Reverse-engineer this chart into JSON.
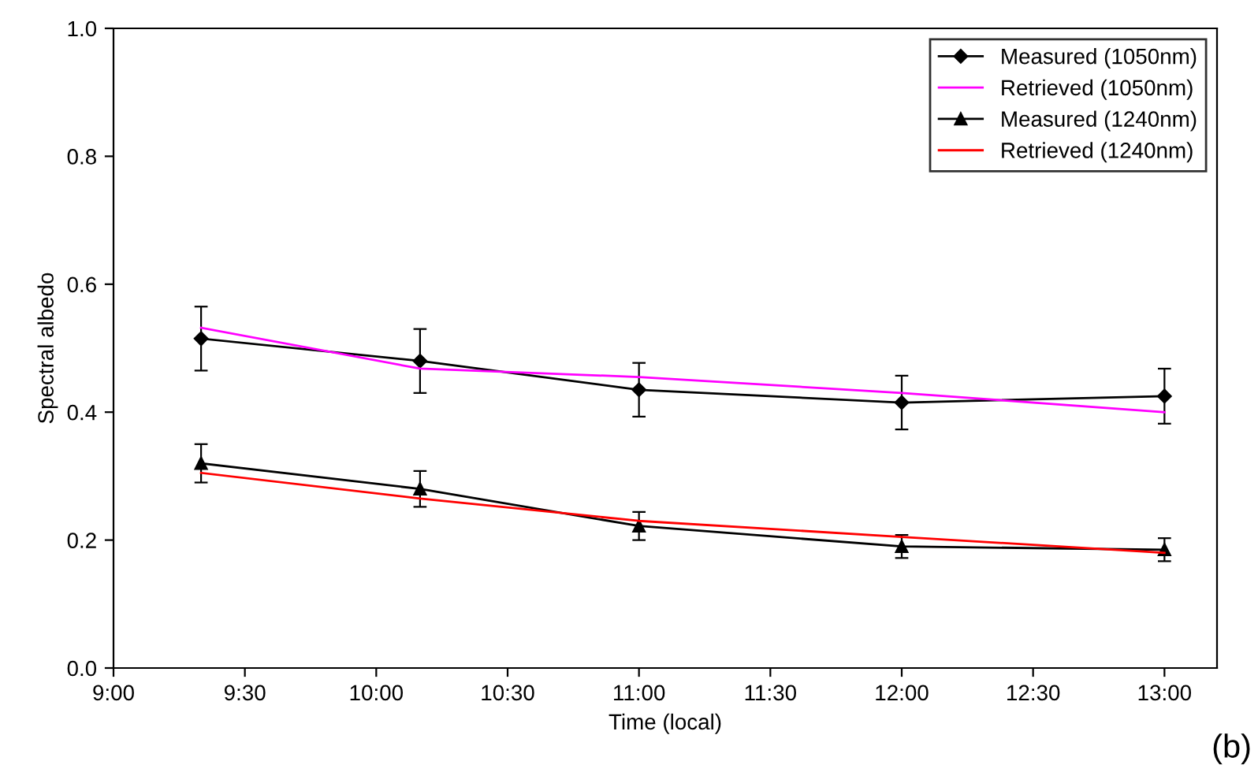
{
  "chart_data": {
    "type": "line",
    "xlabel": "Time (local)",
    "ylabel": "Spectral albedo",
    "annotations": [
      "(b)"
    ],
    "x": [
      9.3333,
      10.1667,
      11,
      12,
      13
    ],
    "xlim": [
      9,
      13.2
    ],
    "xticks": [
      {
        "value": 9,
        "label": "9:00"
      },
      {
        "value": 9.5,
        "label": "9:30"
      },
      {
        "value": 10,
        "label": "10:00"
      },
      {
        "value": 10.5,
        "label": "10:30"
      },
      {
        "value": 11,
        "label": "11:00"
      },
      {
        "value": 11.5,
        "label": "11:30"
      },
      {
        "value": 12,
        "label": "12:00"
      },
      {
        "value": 12.5,
        "label": "12:30"
      },
      {
        "value": 13,
        "label": "13:00"
      }
    ],
    "ylim": [
      0,
      1
    ],
    "yticks": [
      {
        "value": 0,
        "label": "0.0"
      },
      {
        "value": 0.2,
        "label": "0.2"
      },
      {
        "value": 0.4,
        "label": "0.4"
      },
      {
        "value": 0.6,
        "label": "0.6"
      },
      {
        "value": 0.8,
        "label": "0.8"
      },
      {
        "value": 1,
        "label": "1.0"
      }
    ],
    "grid": false,
    "legend": "top right",
    "series": [
      {
        "name": "Measured (1050nm)",
        "color": "#000000",
        "marker": "diamond",
        "values": [
          0.515,
          0.48,
          0.435,
          0.415,
          0.425
        ],
        "errors": [
          0.05,
          0.05,
          0.042,
          0.042,
          0.043
        ]
      },
      {
        "name": "Retrieved (1050nm)",
        "color": "#ff00ff",
        "marker": "none",
        "values": [
          0.532,
          0.468,
          0.455,
          0.43,
          0.4
        ]
      },
      {
        "name": "Measured (1240nm)",
        "color": "#000000",
        "marker": "triangle",
        "values": [
          0.32,
          0.28,
          0.222,
          0.19,
          0.185
        ],
        "errors": [
          0.03,
          0.028,
          0.022,
          0.018,
          0.018
        ]
      },
      {
        "name": "Retrieved (1240nm)",
        "color": "#ff0000",
        "marker": "none",
        "values": [
          0.305,
          0.265,
          0.23,
          0.205,
          0.18
        ]
      }
    ]
  }
}
